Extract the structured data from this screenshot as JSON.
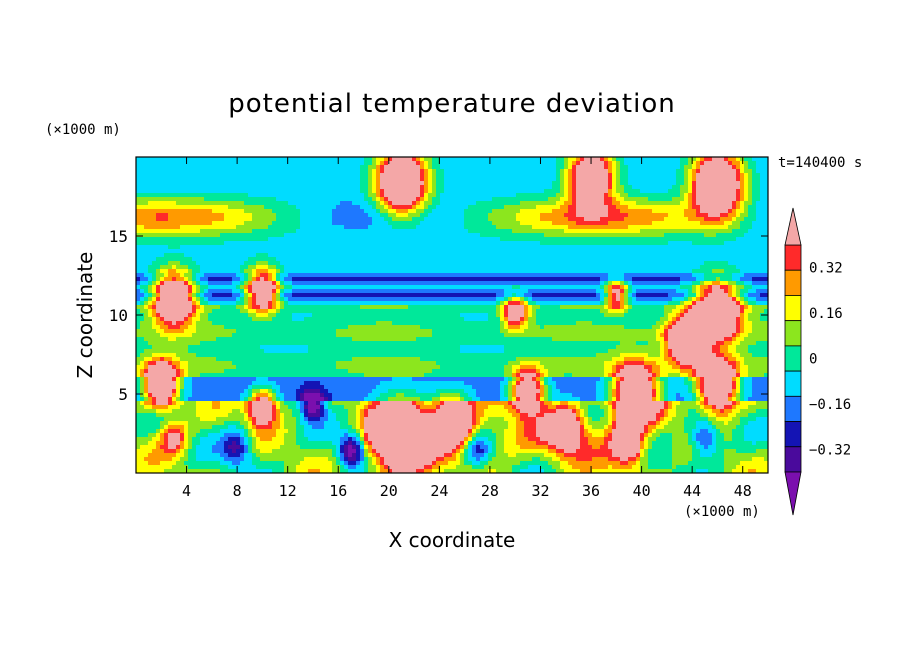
{
  "chart_data": {
    "type": "heatmap",
    "title": "potential temperature deviation",
    "xlabel": "X coordinate",
    "ylabel": "Z coordinate",
    "x_unit": "(×1000 m)",
    "y_unit": "(×1000 m)",
    "time_label": "t=140400 s",
    "xlim": [
      0,
      50
    ],
    "ylim": [
      0,
      20
    ],
    "x_ticks": [
      4,
      8,
      12,
      16,
      20,
      24,
      28,
      32,
      36,
      40,
      44,
      48
    ],
    "y_ticks": [
      5,
      10,
      15
    ],
    "colorbar": {
      "levels": [
        -0.4,
        -0.32,
        -0.24,
        -0.16,
        -0.08,
        0,
        0.08,
        0.16,
        0.24,
        0.32,
        0.4
      ],
      "tick_labels": [
        "0.32",
        "0.16",
        "0",
        "−0.16",
        "−0.32"
      ],
      "tick_values": [
        0.32,
        0.16,
        0,
        -0.16,
        -0.32
      ],
      "colors": [
        "#7B0FAE",
        "#4A0A9C",
        "#1414B4",
        "#1E78FF",
        "#00DCFF",
        "#00E89A",
        "#8CE61E",
        "#FFFF00",
        "#FF9A00",
        "#FF2A2A",
        "#F4A7A7"
      ],
      "extend": "both"
    },
    "grid": false
  }
}
